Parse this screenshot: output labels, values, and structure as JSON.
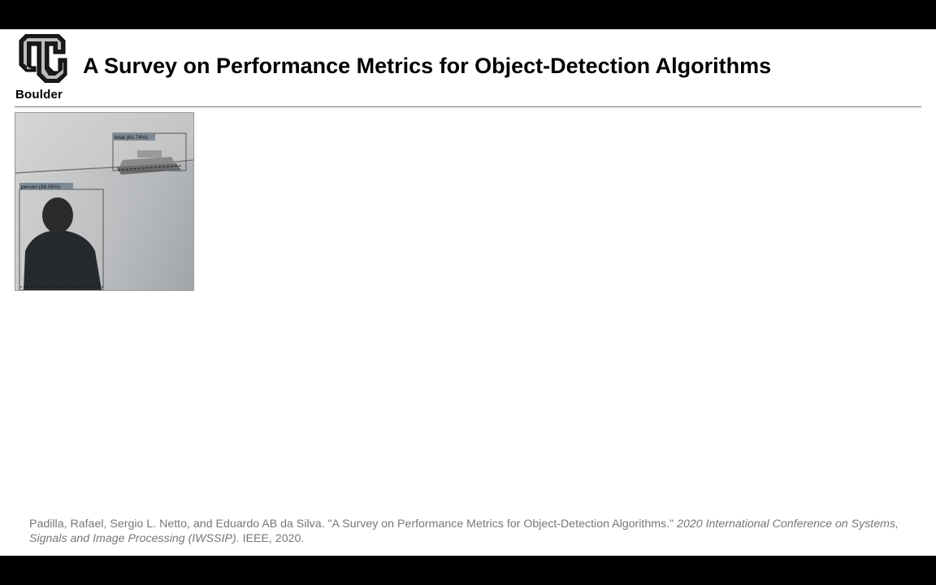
{
  "header": {
    "logo_text": "Boulder",
    "title": "A Survey on Performance Metrics for Object-Detection Algorithms"
  },
  "figure": {
    "detections": [
      {
        "label": "boat (61.74%)"
      },
      {
        "label": "person (98.05%)"
      }
    ]
  },
  "citation": {
    "authors_title": "Padilla, Rafael, Sergio L. Netto, and Eduardo AB da Silva. \"A Survey on Performance Metrics for Object-Detection Algorithms.\"",
    "venue": "2020 International Conference on Systems, Signals and Image Processing (IWSSIP).",
    "publisher_year": "IEEE, 2020."
  }
}
